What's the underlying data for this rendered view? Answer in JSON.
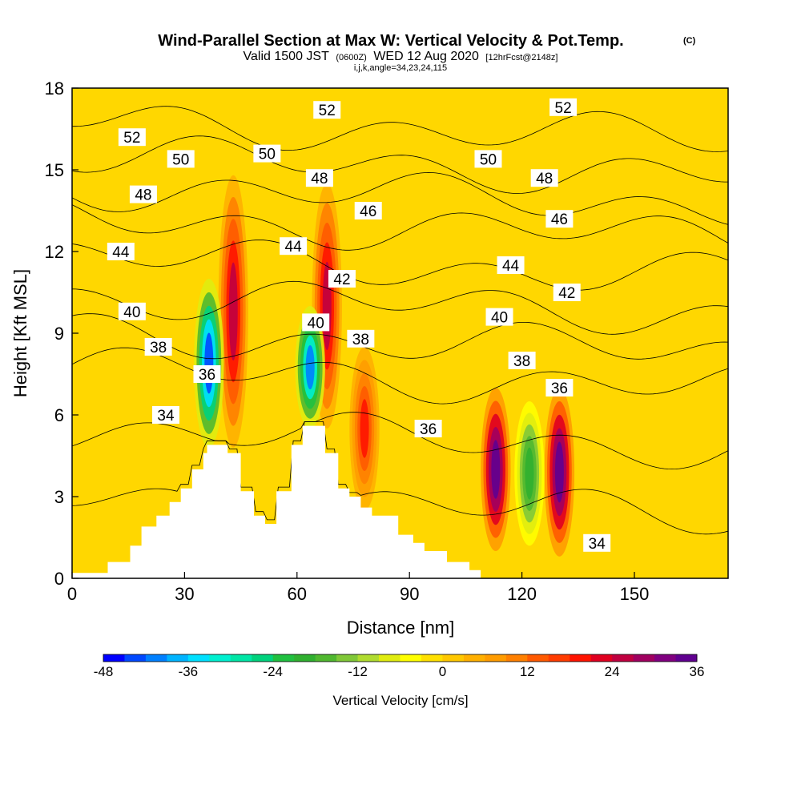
{
  "title": "Wind-Parallel Section at Max W: Vertical Velocity & Pot.Temp.",
  "copyright_mark": "(C)",
  "subtitle": {
    "valid_prefix": "Valid 1500 JST",
    "utc": "(0600Z)",
    "date": "WED 12 Aug 2020",
    "forecast": "[12hrFcst@2148z]"
  },
  "indices_line": "i,j,k,angle=34,23,24,115",
  "chart_data": {
    "type": "heatmap",
    "title": "Wind-Parallel Section at Max W: Vertical Velocity & Pot.Temp.",
    "xlabel": "Distance [nm]",
    "ylabel": "Height [Kft MSL]",
    "xlim": [
      0,
      175
    ],
    "ylim": [
      0,
      18
    ],
    "x_ticks": [
      0,
      30,
      60,
      90,
      120,
      150
    ],
    "y_ticks": [
      0,
      3,
      6,
      9,
      12,
      15,
      18
    ],
    "grid": false,
    "fill_variable": "Vertical Velocity [cm/s]",
    "contour_variable": "Potential temperature",
    "colorbar": {
      "label": "Vertical Velocity [cm/s]",
      "tick_labels": [
        "-48",
        "-36",
        "-24",
        "-12",
        "0",
        "12",
        "24",
        "36"
      ],
      "levels": [
        -48,
        -45,
        -42,
        -39,
        -36,
        -33,
        -30,
        -27,
        -24,
        -21,
        -18,
        -15,
        -12,
        -9,
        -6,
        -3,
        0,
        3,
        6,
        9,
        12,
        15,
        18,
        21,
        24,
        27,
        30,
        33,
        36
      ],
      "colors": [
        "#0000ff",
        "#0048ff",
        "#0080ff",
        "#00b4ff",
        "#00e0ff",
        "#00f0d0",
        "#00e6a6",
        "#00d27d",
        "#20c040",
        "#30b030",
        "#50b830",
        "#80c838",
        "#b0dc30",
        "#e0ec10",
        "#ffff00",
        "#ffe000",
        "#ffc800",
        "#ffb000",
        "#ff9c00",
        "#ff8000",
        "#ff5a00",
        "#ff3c00",
        "#ff1400",
        "#e00020",
        "#c00040",
        "#a00060",
        "#800080",
        "#600090"
      ]
    },
    "background_color": "#ffd700",
    "terrain_profile": [
      [
        0,
        0.2
      ],
      [
        9.5,
        0.2
      ],
      [
        9.5,
        0.6
      ],
      [
        15.5,
        0.6
      ],
      [
        15.5,
        1.2
      ],
      [
        18.5,
        1.2
      ],
      [
        18.5,
        1.9
      ],
      [
        22.5,
        1.9
      ],
      [
        22.5,
        2.3
      ],
      [
        26,
        2.3
      ],
      [
        26,
        2.8
      ],
      [
        29,
        2.8
      ],
      [
        29,
        3.3
      ],
      [
        32,
        3.3
      ],
      [
        32,
        4.0
      ],
      [
        35,
        4.0
      ],
      [
        35,
        4.6
      ],
      [
        36,
        4.6
      ],
      [
        36,
        4.9
      ],
      [
        41.5,
        4.9
      ],
      [
        41.5,
        4.6
      ],
      [
        45,
        4.6
      ],
      [
        45,
        3.2
      ],
      [
        48.5,
        3.2
      ],
      [
        48.5,
        2.3
      ],
      [
        51.5,
        2.3
      ],
      [
        51.5,
        2.0
      ],
      [
        54.5,
        2.0
      ],
      [
        54.5,
        3.2
      ],
      [
        58.5,
        3.2
      ],
      [
        58.5,
        4.9
      ],
      [
        61.5,
        4.9
      ],
      [
        61.5,
        5.6
      ],
      [
        67.5,
        5.6
      ],
      [
        67.5,
        4.6
      ],
      [
        71,
        4.6
      ],
      [
        71,
        3.3
      ],
      [
        74,
        3.3
      ],
      [
        74,
        3.0
      ],
      [
        77,
        3.0
      ],
      [
        77,
        2.6
      ],
      [
        80,
        2.6
      ],
      [
        80,
        2.3
      ],
      [
        87,
        2.3
      ],
      [
        87,
        1.6
      ],
      [
        91,
        1.6
      ],
      [
        91,
        1.3
      ],
      [
        94,
        1.3
      ],
      [
        94,
        1.0
      ],
      [
        100,
        1.0
      ],
      [
        100,
        0.6
      ],
      [
        106,
        0.6
      ],
      [
        106,
        0.3
      ],
      [
        109,
        0.3
      ],
      [
        109,
        0
      ]
    ],
    "isentropes": [
      {
        "value": 34,
        "y_left": 3.0,
        "labels": [
          [
            25,
            6.0
          ],
          [
            140,
            1.3
          ]
        ]
      },
      {
        "value": 36,
        "y_left": 5.5,
        "labels": [
          [
            36,
            7.5
          ],
          [
            95,
            5.5
          ],
          [
            130,
            7.0
          ]
        ]
      },
      {
        "value": 38,
        "y_left": 7.7,
        "labels": [
          [
            23,
            8.5
          ],
          [
            77,
            8.8
          ],
          [
            120,
            8.0
          ]
        ]
      },
      {
        "value": 40,
        "y_left": 9.0,
        "labels": [
          [
            16,
            9.8
          ],
          [
            65,
            9.4
          ],
          [
            114,
            9.6
          ]
        ]
      },
      {
        "value": 42,
        "y_left": 10.4,
        "labels": [
          [
            72,
            11.0
          ],
          [
            132,
            10.5
          ]
        ]
      },
      {
        "value": 44,
        "y_left": 11.8,
        "labels": [
          [
            13,
            12.0
          ],
          [
            59,
            12.2
          ],
          [
            117,
            11.5
          ]
        ]
      },
      {
        "value": 46,
        "y_left": 13.2,
        "labels": [
          [
            79,
            13.5
          ],
          [
            130,
            13.2
          ]
        ]
      },
      {
        "value": 48,
        "y_left": 14.4,
        "labels": [
          [
            19,
            14.1
          ],
          [
            66,
            14.7
          ],
          [
            126,
            14.7
          ]
        ]
      },
      {
        "value": 50,
        "y_left": 15.5,
        "labels": [
          [
            29,
            15.4
          ],
          [
            52,
            15.6
          ],
          [
            111,
            15.4
          ]
        ]
      },
      {
        "value": 52,
        "y_left": 16.8,
        "labels": [
          [
            16,
            16.2
          ],
          [
            68,
            17.2
          ],
          [
            131,
            17.3
          ]
        ]
      }
    ],
    "velocity_features": [
      {
        "x": 43,
        "y_range": [
          4.8,
          14.8
        ],
        "peak": 24,
        "note": "updraft column"
      },
      {
        "x": 36.5,
        "y_range": [
          4.8,
          11
        ],
        "peak": -45,
        "note": "downdraft column"
      },
      {
        "x": 68,
        "y_range": [
          5.5,
          14.5
        ],
        "peak": 24
      },
      {
        "x": 63.5,
        "y_range": [
          5.5,
          10
        ],
        "peak": -40
      },
      {
        "x": 113,
        "y_range": [
          1.0,
          7.0
        ],
        "peak": 36
      },
      {
        "x": 130,
        "y_range": [
          0.8,
          7.0
        ],
        "peak": 36
      },
      {
        "x": 122,
        "y_range": [
          1.2,
          6.5
        ],
        "peak": -21
      },
      {
        "x": 78,
        "y_range": [
          2.5,
          8.5
        ],
        "peak": 18
      }
    ]
  }
}
